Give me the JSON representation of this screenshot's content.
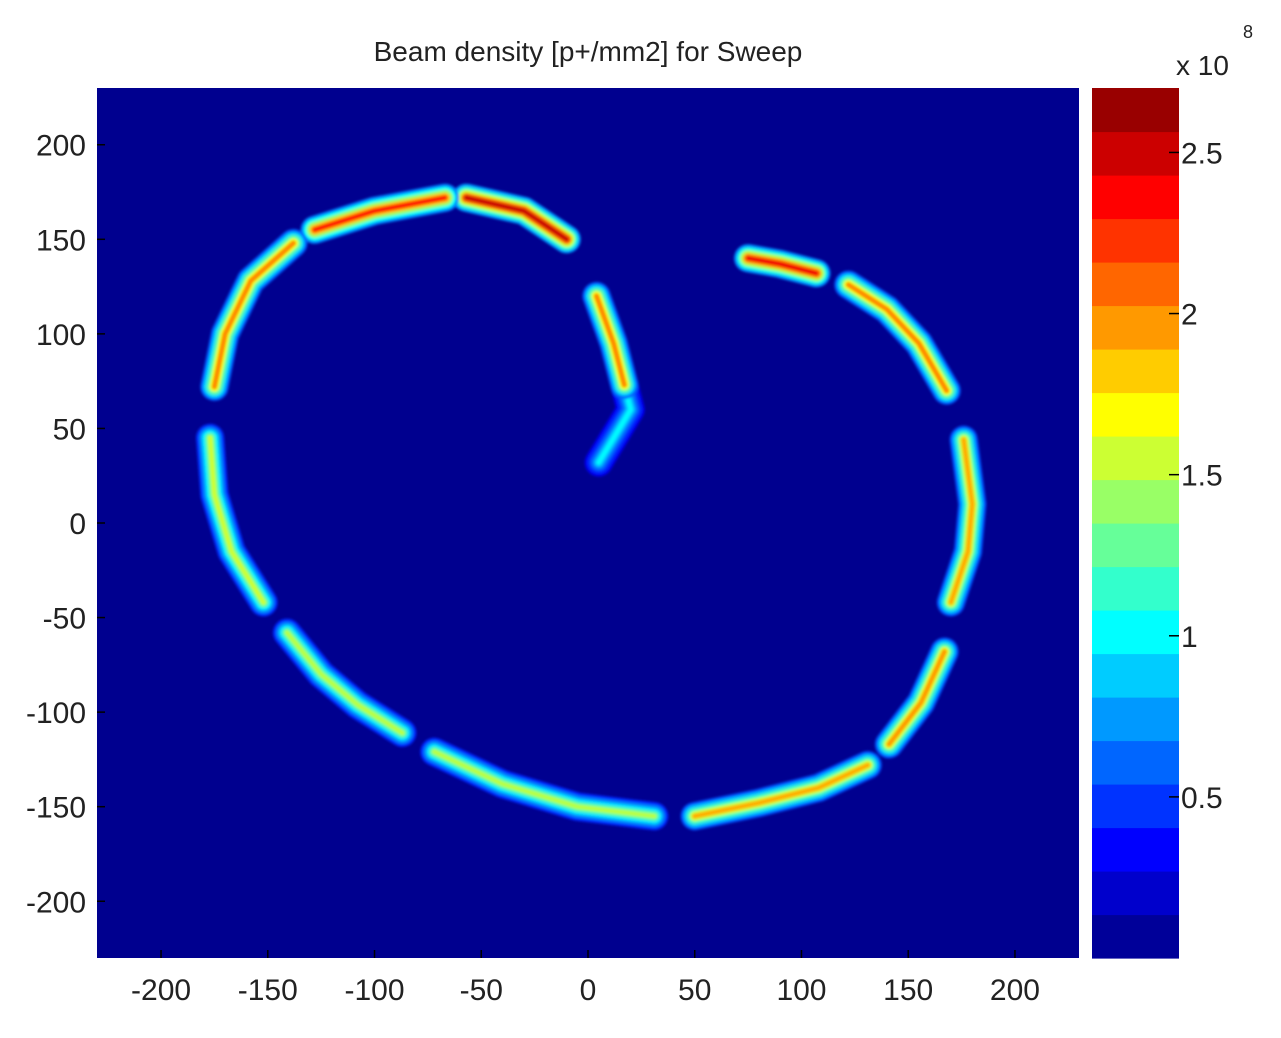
{
  "chart_data": {
    "type": "heatmap",
    "title": "Beam density [p+/mm2] for Sweep",
    "xlabel": "",
    "ylabel": "",
    "xlim": [
      -230,
      230
    ],
    "ylim": [
      -230,
      230
    ],
    "x_ticks": [
      -200,
      -150,
      -100,
      -50,
      0,
      50,
      100,
      150,
      200
    ],
    "y_ticks": [
      200,
      150,
      100,
      50,
      0,
      -50,
      -100,
      -150,
      -200
    ],
    "x_tick_labels": [
      "-200",
      "-150",
      "-100",
      "-50",
      "0",
      "50",
      "100",
      "150",
      "200"
    ],
    "y_tick_labels": [
      "200",
      "150",
      "100",
      "50",
      "0",
      "-50",
      "-100",
      "-150",
      "-200"
    ],
    "background_color": "#00008f",
    "colormap": "jet",
    "colorbar": {
      "range": [
        0,
        2.7
      ],
      "ticks": [
        0.5,
        1,
        1.5,
        2,
        2.5
      ],
      "tick_labels": [
        "0.5",
        "1",
        "1.5",
        "2",
        "2.5"
      ],
      "multiplier_base": "x 10",
      "multiplier_exponent": "8"
    },
    "segments": [
      {
        "points": [
          [
            5,
            32
          ],
          [
            12,
            45
          ],
          [
            20,
            60
          ],
          [
            17,
            73
          ]
        ],
        "density": 1.0
      },
      {
        "points": [
          [
            17,
            73
          ],
          [
            12,
            95
          ],
          [
            4,
            120
          ]
        ],
        "density": 2.0
      },
      {
        "points": [
          [
            -10,
            150
          ],
          [
            -30,
            165
          ],
          [
            -57,
            172
          ]
        ],
        "density": 2.5
      },
      {
        "points": [
          [
            -67,
            172
          ],
          [
            -100,
            165
          ],
          [
            -128,
            155
          ]
        ],
        "density": 2.3
      },
      {
        "points": [
          [
            -138,
            148
          ],
          [
            -158,
            128
          ],
          [
            -170,
            100
          ],
          [
            -175,
            72
          ]
        ],
        "density": 2.0
      },
      {
        "points": [
          [
            -177,
            45
          ],
          [
            -175,
            15
          ],
          [
            -167,
            -15
          ],
          [
            -152,
            -42
          ]
        ],
        "density": 1.55
      },
      {
        "points": [
          [
            -141,
            -58
          ],
          [
            -125,
            -80
          ],
          [
            -108,
            -96
          ],
          [
            -87,
            -111
          ]
        ],
        "density": 1.5
      },
      {
        "points": [
          [
            -72,
            -121
          ],
          [
            -40,
            -138
          ],
          [
            -5,
            -150
          ],
          [
            31,
            -155
          ]
        ],
        "density": 1.5
      },
      {
        "points": [
          [
            50,
            -155
          ],
          [
            80,
            -148
          ],
          [
            108,
            -140
          ],
          [
            131,
            -128
          ]
        ],
        "density": 1.9
      },
      {
        "points": [
          [
            141,
            -117
          ],
          [
            156,
            -95
          ],
          [
            167,
            -68
          ]
        ],
        "density": 1.95
      },
      {
        "points": [
          [
            170,
            -42
          ],
          [
            178,
            -15
          ],
          [
            180,
            10
          ],
          [
            176,
            44
          ]
        ],
        "density": 1.9
      },
      {
        "points": [
          [
            168,
            70
          ],
          [
            155,
            95
          ],
          [
            140,
            113
          ],
          [
            122,
            126
          ]
        ],
        "density": 2.0
      },
      {
        "points": [
          [
            107,
            132
          ],
          [
            90,
            137
          ],
          [
            75,
            140
          ]
        ],
        "density": 2.4
      }
    ]
  }
}
